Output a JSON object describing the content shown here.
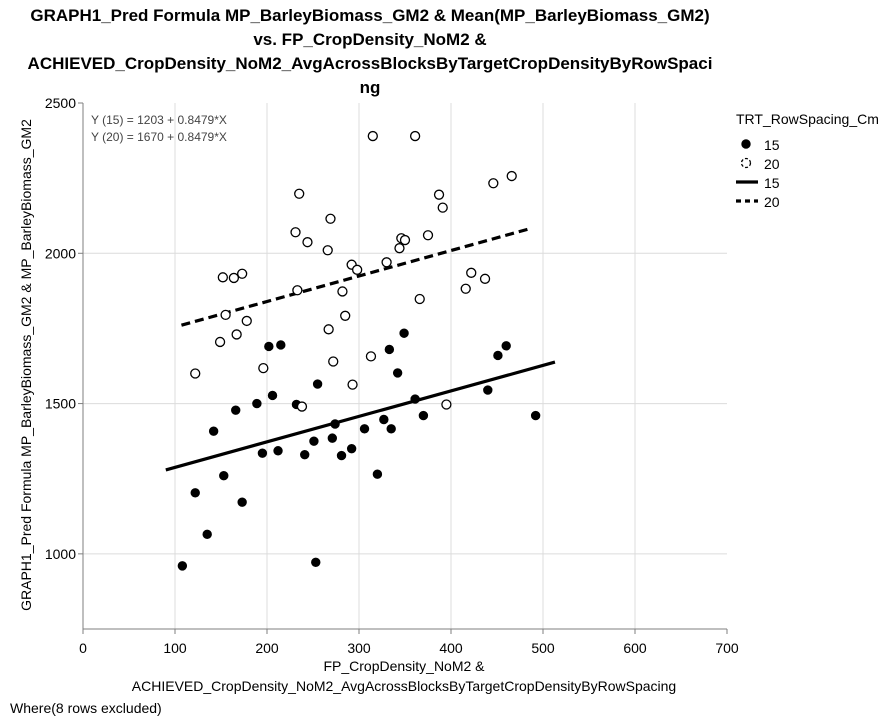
{
  "chart_data": {
    "type": "scatter",
    "title_lines": [
      "GRAPH1_Pred Formula MP_BarleyBiomass_GM2 & Mean(MP_BarleyBiomass_GM2)",
      "vs. FP_CropDensity_NoM2 &",
      "ACHIEVED_CropDensity_NoM2_AvgAcrossBlocksByTargetCropDensityByRowSpaci",
      "ng"
    ],
    "xlabel_lines": [
      "FP_CropDensity_NoM2 &",
      "ACHIEVED_CropDensity_NoM2_AvgAcrossBlocksByTargetCropDensityByRowSpacing"
    ],
    "ylabel": "GRAPH1_Pred Formula MP_BarleyBiomass_GM2 & MP_BarleyBiomass_GM2",
    "xlim": [
      0,
      700
    ],
    "ylim": [
      750,
      2500
    ],
    "xticks": [
      0,
      100,
      200,
      300,
      400,
      500,
      600,
      700
    ],
    "yticks": [
      1000,
      1500,
      2000,
      2500
    ],
    "grid": true,
    "equations": [
      "Y (15) = 1203 + 0.8479*X",
      "Y (20) = 1670 + 0.8479*X"
    ],
    "legend_title": "TRT_RowSpacing_Cm",
    "legend": [
      {
        "label": "15",
        "kind": "marker",
        "style": "filled"
      },
      {
        "label": "20",
        "kind": "marker",
        "style": "open"
      },
      {
        "label": "15",
        "kind": "line",
        "style": "solid"
      },
      {
        "label": "20",
        "kind": "line",
        "style": "dashed"
      }
    ],
    "footnote": "Where(8 rows excluded)",
    "series": [
      {
        "name": "15",
        "marker": "filled",
        "points": [
          [
            108,
            960
          ],
          [
            122,
            1203
          ],
          [
            135,
            1065
          ],
          [
            142,
            1408
          ],
          [
            153,
            1260
          ],
          [
            166,
            1478
          ],
          [
            173,
            1172
          ],
          [
            189,
            1500
          ],
          [
            195,
            1335
          ],
          [
            202,
            1690
          ],
          [
            206,
            1527
          ],
          [
            212,
            1343
          ],
          [
            215,
            1695
          ],
          [
            232,
            1497
          ],
          [
            241,
            1330
          ],
          [
            251,
            1375
          ],
          [
            253,
            972
          ],
          [
            255,
            1565
          ],
          [
            271,
            1385
          ],
          [
            274,
            1432
          ],
          [
            281,
            1327
          ],
          [
            292,
            1350
          ],
          [
            306,
            1416
          ],
          [
            320,
            1265
          ],
          [
            327,
            1447
          ],
          [
            333,
            1680
          ],
          [
            335,
            1416
          ],
          [
            342,
            1602
          ],
          [
            349,
            1734
          ],
          [
            361,
            1515
          ],
          [
            370,
            1460
          ],
          [
            440,
            1545
          ],
          [
            451,
            1660
          ],
          [
            460,
            1692
          ],
          [
            492,
            1460
          ]
        ]
      },
      {
        "name": "20",
        "marker": "open",
        "points": [
          [
            122,
            1600
          ],
          [
            149,
            1705
          ],
          [
            152,
            1920
          ],
          [
            155,
            1795
          ],
          [
            164,
            1918
          ],
          [
            167,
            1730
          ],
          [
            173,
            1932
          ],
          [
            178,
            1775
          ],
          [
            196,
            1618
          ],
          [
            231,
            2070
          ],
          [
            233,
            1877
          ],
          [
            235,
            2198
          ],
          [
            238,
            1490
          ],
          [
            244,
            2037
          ],
          [
            266,
            2010
          ],
          [
            267,
            1747
          ],
          [
            269,
            2115
          ],
          [
            272,
            1640
          ],
          [
            282,
            1873
          ],
          [
            285,
            1792
          ],
          [
            292,
            1962
          ],
          [
            293,
            1563
          ],
          [
            298,
            1945
          ],
          [
            313,
            1657
          ],
          [
            315,
            2390
          ],
          [
            330,
            1970
          ],
          [
            344,
            2017
          ],
          [
            346,
            2050
          ],
          [
            350,
            2044
          ],
          [
            361,
            2390
          ],
          [
            366,
            1848
          ],
          [
            375,
            2060
          ],
          [
            387,
            2195
          ],
          [
            391,
            2152
          ],
          [
            395,
            1497
          ],
          [
            416,
            1882
          ],
          [
            422,
            1935
          ],
          [
            437,
            1915
          ],
          [
            446,
            2233
          ],
          [
            466,
            2257
          ]
        ]
      }
    ],
    "fit_lines": [
      {
        "name": "15",
        "intercept": 1203,
        "slope": 0.8479,
        "x_range": [
          90,
          513
        ],
        "style": "solid"
      },
      {
        "name": "20",
        "intercept": 1670,
        "slope": 0.8479,
        "x_range": [
          107,
          484
        ],
        "style": "dashed"
      }
    ]
  }
}
